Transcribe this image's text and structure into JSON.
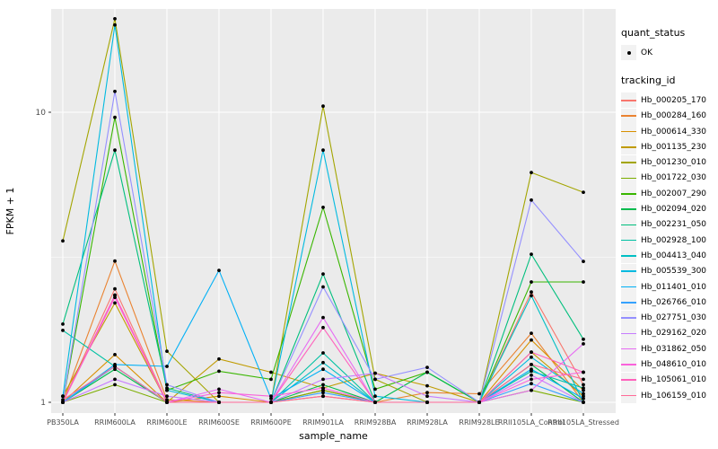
{
  "chart_data": {
    "type": "line",
    "xlabel": "sample_name",
    "ylabel": "FPKM + 1",
    "y_scale": "log10",
    "y_tick_values": [
      1,
      10
    ],
    "y_tick_labels": [
      "1",
      "10"
    ],
    "y_minor_values": [
      3.162
    ],
    "ylim": [
      0.92,
      22.8
    ],
    "grid": "on",
    "legend_position": "right",
    "panel_bg": "#EBEBEB",
    "grid_color": "#FFFFFF",
    "tick_label_color": "#4D4D4D",
    "axis_title_color": "#000000",
    "point_color": "#000000",
    "categories": [
      "PB350LA",
      "RRIM600LA",
      "RRIM600LE",
      "RRIM600SE",
      "RRIM600PE",
      "RRIM901LA",
      "RRIM928BA",
      "RRIM928LA",
      "RRIM928LE",
      "RRII105LA_Control",
      "RRII105LA_Stressed"
    ],
    "series": [
      {
        "name": "Hb_000205_170",
        "color": "#F8766D",
        "values": [
          1.0,
          2.46,
          1.0,
          1.0,
          1.0,
          1.1,
          1.0,
          1.0,
          1.0,
          2.4,
          1.15
        ]
      },
      {
        "name": "Hb_000284_160",
        "color": "#EA8331",
        "values": [
          1.0,
          3.07,
          1.02,
          1.0,
          1.0,
          1.05,
          1.0,
          1.08,
          1.07,
          1.73,
          1.0
        ]
      },
      {
        "name": "Hb_000614_330",
        "color": "#D89000",
        "values": [
          1.0,
          1.46,
          1.0,
          1.05,
          1.0,
          1.1,
          1.0,
          1.0,
          1.0,
          1.64,
          1.1
        ]
      },
      {
        "name": "Hb_001135_230",
        "color": "#C09B00",
        "values": [
          1.05,
          2.2,
          1.0,
          1.41,
          1.27,
          1.12,
          1.26,
          1.14,
          1.0,
          1.49,
          1.05
        ]
      },
      {
        "name": "Hb_001230_010",
        "color": "#A3A500",
        "values": [
          3.6,
          21.0,
          1.5,
          1.0,
          1.0,
          10.5,
          1.2,
          1.0,
          1.0,
          6.2,
          5.3
        ]
      },
      {
        "name": "Hb_001722_030",
        "color": "#7CAE00",
        "values": [
          1.0,
          1.15,
          1.0,
          1.0,
          1.0,
          1.1,
          1.0,
          1.0,
          1.0,
          1.1,
          1.0
        ]
      },
      {
        "name": "Hb_002007_290",
        "color": "#39B600",
        "values": [
          1.0,
          9.6,
          1.1,
          1.28,
          1.2,
          4.7,
          1.11,
          1.27,
          1.0,
          2.6,
          2.6
        ]
      },
      {
        "name": "Hb_002094_020",
        "color": "#00BB4E",
        "values": [
          1.0,
          1.3,
          1.0,
          1.0,
          1.0,
          1.15,
          1.0,
          1.27,
          1.0,
          1.35,
          1.0
        ]
      },
      {
        "name": "Hb_002231_050",
        "color": "#00BF7D",
        "values": [
          1.86,
          7.4,
          1.12,
          1.0,
          1.0,
          2.77,
          1.0,
          1.0,
          1.0,
          3.24,
          1.65
        ]
      },
      {
        "name": "Hb_002928_100",
        "color": "#00C1A3",
        "values": [
          1.77,
          1.33,
          1.0,
          1.0,
          1.0,
          1.48,
          1.0,
          1.0,
          1.0,
          1.28,
          1.12
        ]
      },
      {
        "name": "Hb_004413_040",
        "color": "#00BFC4",
        "values": [
          1.0,
          1.33,
          1.0,
          1.0,
          1.0,
          1.37,
          1.0,
          1.0,
          1.0,
          2.33,
          1.0
        ]
      },
      {
        "name": "Hb_005539_300",
        "color": "#00BAE0",
        "values": [
          1.05,
          20.0,
          1.1,
          1.0,
          1.0,
          7.4,
          1.05,
          1.0,
          1.0,
          1.43,
          1.07
        ]
      },
      {
        "name": "Hb_011401_010",
        "color": "#00B0F6",
        "values": [
          1.0,
          1.35,
          1.33,
          2.85,
          1.03,
          1.3,
          1.0,
          1.0,
          1.0,
          1.3,
          1.03
        ]
      },
      {
        "name": "Hb_026766_010",
        "color": "#35A2FF",
        "values": [
          1.0,
          1.33,
          1.0,
          1.0,
          1.0,
          1.08,
          1.0,
          1.0,
          1.0,
          1.16,
          1.0
        ]
      },
      {
        "name": "Hb_027751_030",
        "color": "#9590FF",
        "values": [
          1.0,
          11.8,
          1.15,
          1.0,
          1.0,
          2.5,
          1.2,
          1.32,
          1.0,
          4.98,
          3.06
        ]
      },
      {
        "name": "Hb_029162_020",
        "color": "#C77CFF",
        "values": [
          1.0,
          1.2,
          1.05,
          1.0,
          1.0,
          1.2,
          1.26,
          1.05,
          1.0,
          1.24,
          1.0
        ]
      },
      {
        "name": "Hb_031862_050",
        "color": "#E76BF3",
        "values": [
          1.0,
          2.34,
          1.0,
          1.11,
          1.0,
          1.96,
          1.0,
          1.0,
          1.0,
          1.1,
          1.59
        ]
      },
      {
        "name": "Hb_048610_010",
        "color": "#FA62DB",
        "values": [
          1.0,
          2.3,
          1.0,
          1.08,
          1.05,
          1.12,
          1.0,
          1.0,
          1.0,
          1.2,
          1.27
        ]
      },
      {
        "name": "Hb_105061_010",
        "color": "#FF62BC",
        "values": [
          1.0,
          2.34,
          1.0,
          1.0,
          1.0,
          1.81,
          1.0,
          1.0,
          1.0,
          1.49,
          1.27
        ]
      },
      {
        "name": "Hb_106159_010",
        "color": "#FF6A98",
        "values": [
          1.02,
          1.33,
          1.0,
          1.0,
          1.0,
          1.05,
          1.0,
          1.0,
          1.0,
          1.35,
          1.2
        ]
      }
    ]
  },
  "legend": {
    "quant_title": "quant_status",
    "quant_items": [
      {
        "label": "OK",
        "symbol": "point"
      }
    ],
    "tracking_title": "tracking_id",
    "key_bg": "#F2F2F2"
  }
}
